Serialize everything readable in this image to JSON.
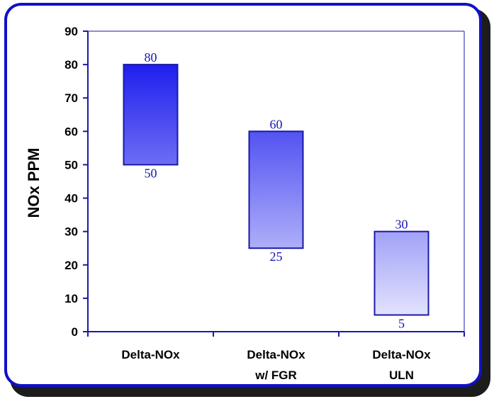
{
  "chart_data": {
    "type": "bar",
    "subtype": "floating-range",
    "title": "",
    "xlabel": "",
    "ylabel": "NOx PPM",
    "ylim": [
      0,
      90
    ],
    "yticks": [
      0,
      10,
      20,
      30,
      40,
      50,
      60,
      70,
      80,
      90
    ],
    "categories": [
      [
        "Delta-NOx"
      ],
      [
        "Delta-NOx",
        "w/ FGR"
      ],
      [
        "Delta-NOx",
        "ULN"
      ]
    ],
    "series": [
      {
        "low": [
          50,
          25,
          5
        ],
        "high": [
          80,
          60,
          30
        ],
        "low_labels": [
          "50",
          "25",
          "5"
        ],
        "high_labels": [
          "80",
          "60",
          "30"
        ]
      }
    ],
    "colors": {
      "border": "#1010c8",
      "axis": "#1a1aa8",
      "bar_top": "#1a1aee",
      "bar_bottom": "#f0f0fe",
      "label": "#1515b5"
    },
    "grid": false,
    "legend": "none"
  }
}
